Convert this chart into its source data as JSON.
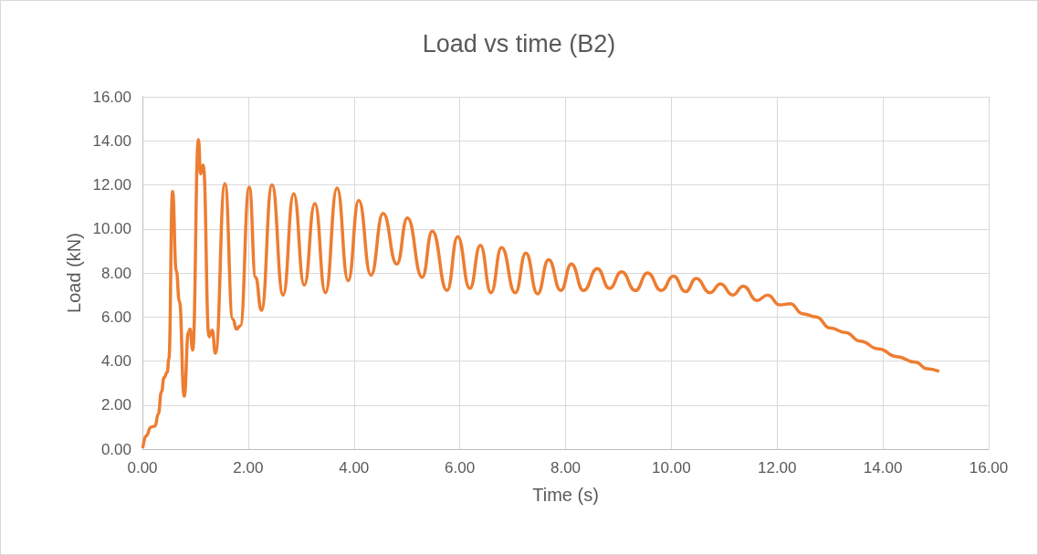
{
  "chart_data": {
    "type": "line",
    "title": "Load vs time (B2)",
    "xlabel": "Time (s)",
    "ylabel": "Load (kN)",
    "xlim": [
      0,
      16
    ],
    "ylim": [
      0,
      16
    ],
    "xticks": [
      {
        "value": 0,
        "label": "0.00"
      },
      {
        "value": 2,
        "label": "2.00"
      },
      {
        "value": 4,
        "label": "4.00"
      },
      {
        "value": 6,
        "label": "6.00"
      },
      {
        "value": 8,
        "label": "8.00"
      },
      {
        "value": 10,
        "label": "10.00"
      },
      {
        "value": 12,
        "label": "12.00"
      },
      {
        "value": 14,
        "label": "14.00"
      },
      {
        "value": 16,
        "label": "16.00"
      }
    ],
    "yticks": [
      {
        "value": 0,
        "label": "0.00"
      },
      {
        "value": 2,
        "label": "2.00"
      },
      {
        "value": 4,
        "label": "4.00"
      },
      {
        "value": 6,
        "label": "6.00"
      },
      {
        "value": 8,
        "label": "8.00"
      },
      {
        "value": 10,
        "label": "10.00"
      },
      {
        "value": 12,
        "label": "12.00"
      },
      {
        "value": 14,
        "label": "14.00"
      },
      {
        "value": 16,
        "label": "16.00"
      }
    ],
    "grid": true,
    "marker": "none",
    "line_style": "solid",
    "series": [
      {
        "color": "#ed7d31",
        "x": [
          0.01,
          0.07,
          0.16,
          0.24,
          0.3,
          0.36,
          0.41,
          0.47,
          0.5,
          0.57,
          0.64,
          0.7,
          0.79,
          0.87,
          0.9,
          0.95,
          1.06,
          1.1,
          1.15,
          1.26,
          1.32,
          1.38,
          1.56,
          1.71,
          1.78,
          1.85,
          2.02,
          2.14,
          2.25,
          2.45,
          2.66,
          2.86,
          3.06,
          3.26,
          3.46,
          3.68,
          3.89,
          4.09,
          4.32,
          4.55,
          4.81,
          5.01,
          5.29,
          5.48,
          5.76,
          5.96,
          6.19,
          6.39,
          6.59,
          6.79,
          7.05,
          7.25,
          7.47,
          7.68,
          7.91,
          8.11,
          8.34,
          8.6,
          8.83,
          9.06,
          9.32,
          9.55,
          9.81,
          10.04,
          10.27,
          10.47,
          10.73,
          10.93,
          11.16,
          11.36,
          11.62,
          11.82,
          12.05,
          12.25,
          12.48,
          12.74,
          13.0,
          13.29,
          13.57,
          13.92,
          14.26,
          14.61,
          14.84,
          15.04
        ],
        "values": [
          0.1,
          0.6,
          1.0,
          1.05,
          1.6,
          2.6,
          3.25,
          3.5,
          4.1,
          11.7,
          8.1,
          6.7,
          2.4,
          5.3,
          5.45,
          4.5,
          14.05,
          12.5,
          12.9,
          5.1,
          5.4,
          4.35,
          12.05,
          5.9,
          5.45,
          5.6,
          11.9,
          7.8,
          6.3,
          12.0,
          7.0,
          11.6,
          7.45,
          11.15,
          7.1,
          11.85,
          7.65,
          11.3,
          7.9,
          10.7,
          8.4,
          10.5,
          7.8,
          9.9,
          7.2,
          9.65,
          7.3,
          9.25,
          7.1,
          9.15,
          7.1,
          8.9,
          7.05,
          8.6,
          7.2,
          8.4,
          7.2,
          8.2,
          7.3,
          8.05,
          7.2,
          8.0,
          7.2,
          7.85,
          7.15,
          7.75,
          7.1,
          7.5,
          7.0,
          7.4,
          6.75,
          7.0,
          6.55,
          6.6,
          6.15,
          6.0,
          5.5,
          5.3,
          4.9,
          4.55,
          4.2,
          3.95,
          3.65,
          3.55
        ]
      }
    ]
  }
}
